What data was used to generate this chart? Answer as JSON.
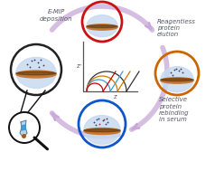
{
  "bg_color": "#ffffff",
  "arrow_color": "#c8a8d8",
  "text_emip": "E-MIP\ndeposition",
  "text_elution": "Reagentless\nprotein\nelution",
  "text_rebinding": "Selective\nprotein\nrebinding\nin serum",
  "circle_top_color": "#cc1111",
  "circle_right_color": "#cc6600",
  "circle_bottom_color": "#1155cc",
  "circle_left_color": "#222222",
  "electrode_body_color": "#c87832",
  "electrode_dark_color": "#5a3a10",
  "dome_color": "#c8daf0",
  "dot_dark": "#334466",
  "dot_red": "#cc2222",
  "dot_blue": "#2244bb",
  "line_colors": [
    "#cc0000",
    "#4499cc",
    "#cc7700",
    "#333333"
  ],
  "graph_axis_color": "#555555",
  "mag_color": "#111111",
  "pipette_body": "#a8c8e8",
  "pipette_liquid": "#3399cc"
}
